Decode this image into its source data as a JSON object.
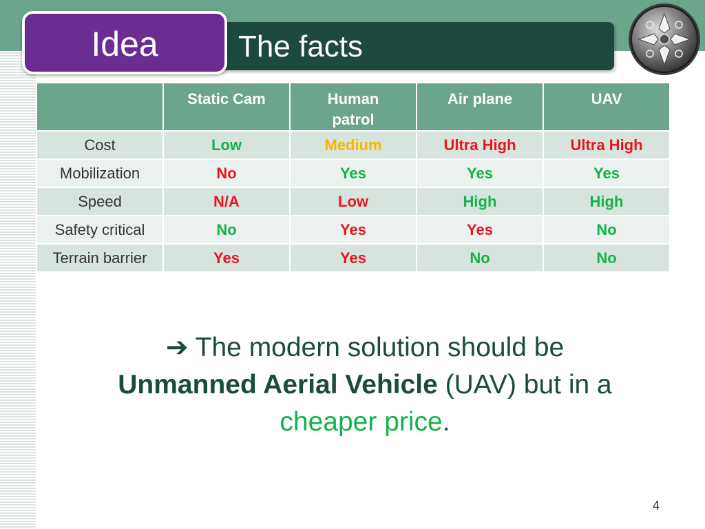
{
  "slide": {
    "idea_label": "Idea",
    "title": "The facts",
    "page_number": "4"
  },
  "table": {
    "headers": [
      "",
      "Static Cam",
      "Human patrol",
      "Air plane",
      "UAV"
    ],
    "rows": [
      {
        "label": "Cost",
        "cells": [
          {
            "text": "Low",
            "color": "#12b34a"
          },
          {
            "text": "Medium",
            "color": "#f5b800"
          },
          {
            "text": "Ultra High",
            "color": "#e8161e"
          },
          {
            "text": "Ultra High",
            "color": "#e8161e"
          }
        ]
      },
      {
        "label": "Mobilization",
        "cells": [
          {
            "text": "No",
            "color": "#e8161e"
          },
          {
            "text": "Yes",
            "color": "#12b34a"
          },
          {
            "text": "Yes",
            "color": "#12b34a"
          },
          {
            "text": "Yes",
            "color": "#12b34a"
          }
        ]
      },
      {
        "label": "Speed",
        "cells": [
          {
            "text": "N/A",
            "color": "#e8161e"
          },
          {
            "text": "Low",
            "color": "#e8161e"
          },
          {
            "text": "High",
            "color": "#12b34a"
          },
          {
            "text": "High",
            "color": "#12b34a"
          }
        ]
      },
      {
        "label": "Safety critical",
        "cells": [
          {
            "text": "No",
            "color": "#12b34a"
          },
          {
            "text": "Yes",
            "color": "#e8161e"
          },
          {
            "text": "Yes",
            "color": "#e8161e"
          },
          {
            "text": "No",
            "color": "#12b34a"
          }
        ]
      },
      {
        "label": "Terrain barrier",
        "cells": [
          {
            "text": "Yes",
            "color": "#e8161e"
          },
          {
            "text": "Yes",
            "color": "#e8161e"
          },
          {
            "text": "No",
            "color": "#12b34a"
          },
          {
            "text": "No",
            "color": "#12b34a"
          }
        ]
      }
    ]
  },
  "conclusion": {
    "arrow": "➔",
    "part1": "The modern solution should be",
    "bold": "Unmanned Aerial Vehicle",
    "part2": "(UAV) but in a",
    "accent": "cheaper price",
    "end": "."
  },
  "colors": {
    "header_bg": "#6aa58c",
    "title_bar": "#1d4a3e",
    "idea_box": "#6b2d91",
    "good": "#12b34a",
    "bad": "#e8161e",
    "medium": "#f5b800"
  },
  "icons": {
    "logo": "compass-emblem-icon"
  }
}
